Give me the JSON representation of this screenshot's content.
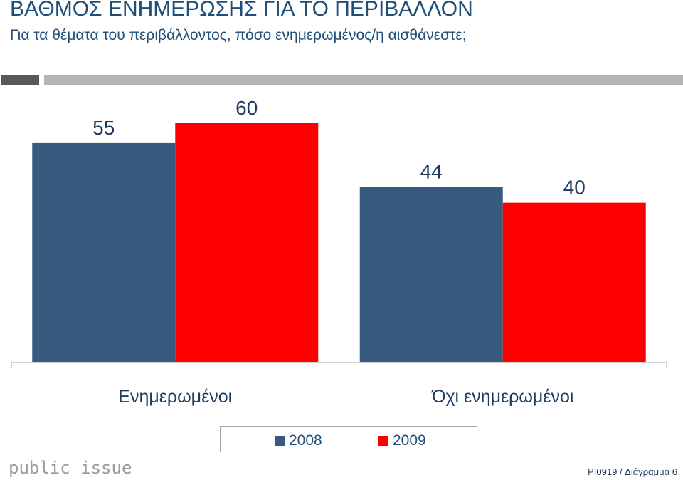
{
  "header": {
    "title": "ΒΑΘΜΟΣ ΕΝΗΜΕΡΩΣΗΣ ΓΙΑ ΤΟ ΠΕΡΙΒΑΛΛΟΝ",
    "subtitle": "Για τα θέματα του περιβάλλοντος, πόσο ενημερωμένος/η αισθάνεστε;"
  },
  "chart_data": {
    "type": "bar",
    "categories": [
      "Ενημερωμένοι",
      "Όχι ενημερωμένοι"
    ],
    "series": [
      {
        "name": "2008",
        "values": [
          55,
          44
        ],
        "color": "#375a7f"
      },
      {
        "name": "2009",
        "values": [
          60,
          40
        ],
        "color": "#ff0000"
      }
    ],
    "ylim": [
      0,
      60
    ],
    "legend": "bottom",
    "grid": false
  },
  "footer": {
    "logo_text": "public issue",
    "code": "PI0919 / Διάγραμμα 6"
  }
}
